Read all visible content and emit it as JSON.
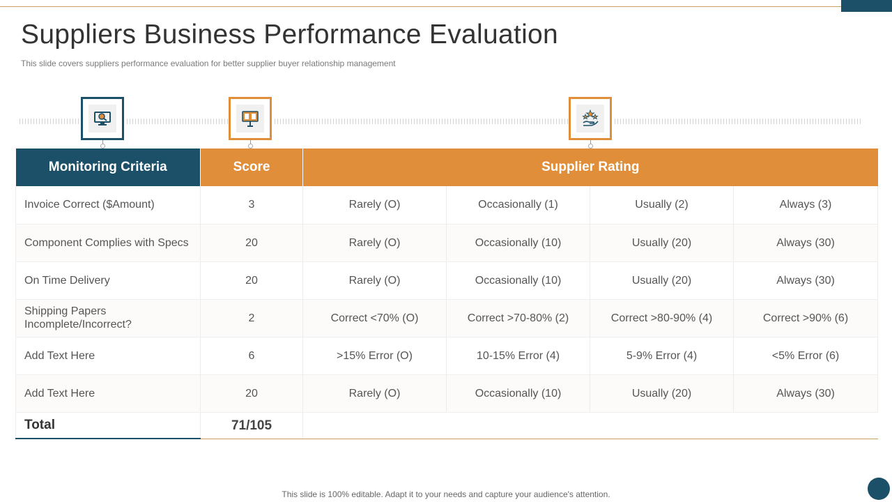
{
  "title": "Suppliers Business Performance Evaluation",
  "subtitle": "This slide covers suppliers performance evaluation for better supplier buyer relationship management",
  "icons": {
    "criteria": "monitor-search-icon",
    "score": "score-board-icon",
    "rating": "rating-stars-hand-icon"
  },
  "headers": {
    "criteria": "Monitoring Criteria",
    "score": "Score",
    "rating": "Supplier Rating"
  },
  "rows": [
    {
      "criteria": "Invoice  Correct ($Amount)",
      "score": "3",
      "r1": "Rarely (O)",
      "r2": "Occasionally  (1)",
      "r3": "Usually  (2)",
      "r4": "Always  (3)"
    },
    {
      "criteria": "Component Complies with Specs",
      "score": "20",
      "r1": "Rarely (O)",
      "r2": "Occasionally  (10)",
      "r3": "Usually  (20)",
      "r4": "Always  (30)"
    },
    {
      "criteria": "On Time Delivery",
      "score": "20",
      "r1": "Rarely (O)",
      "r2": "Occasionally  (10)",
      "r3": "Usually  (20)",
      "r4": "Always  (30)"
    },
    {
      "criteria": "Shipping Papers Incomplete/Incorrect?",
      "score": "2",
      "r1": "Correct <70% (O)",
      "r2": "Correct >70-80% (2)",
      "r3": "Correct >80-90% (4)",
      "r4": "Correct >90% (6)"
    },
    {
      "criteria": "Add Text Here",
      "score": "6",
      "r1": ">15% Error (O)",
      "r2": "10-15% Error (4)",
      "r3": "5-9% Error (4)",
      "r4": "<5% Error (6)"
    },
    {
      "criteria": "Add Text Here",
      "score": "20",
      "r1": "Rarely (O)",
      "r2": "Occasionally  (10)",
      "r3": "Usually  (20)",
      "r4": "Always  (30)"
    }
  ],
  "total": {
    "label": "Total",
    "score": "71/105"
  },
  "footer": "This slide is 100% editable. Adapt it to your needs and capture your audience's attention.",
  "colors": {
    "primary": "#1b5068",
    "accent": "#e08e3a",
    "rule": "#c9a063"
  }
}
